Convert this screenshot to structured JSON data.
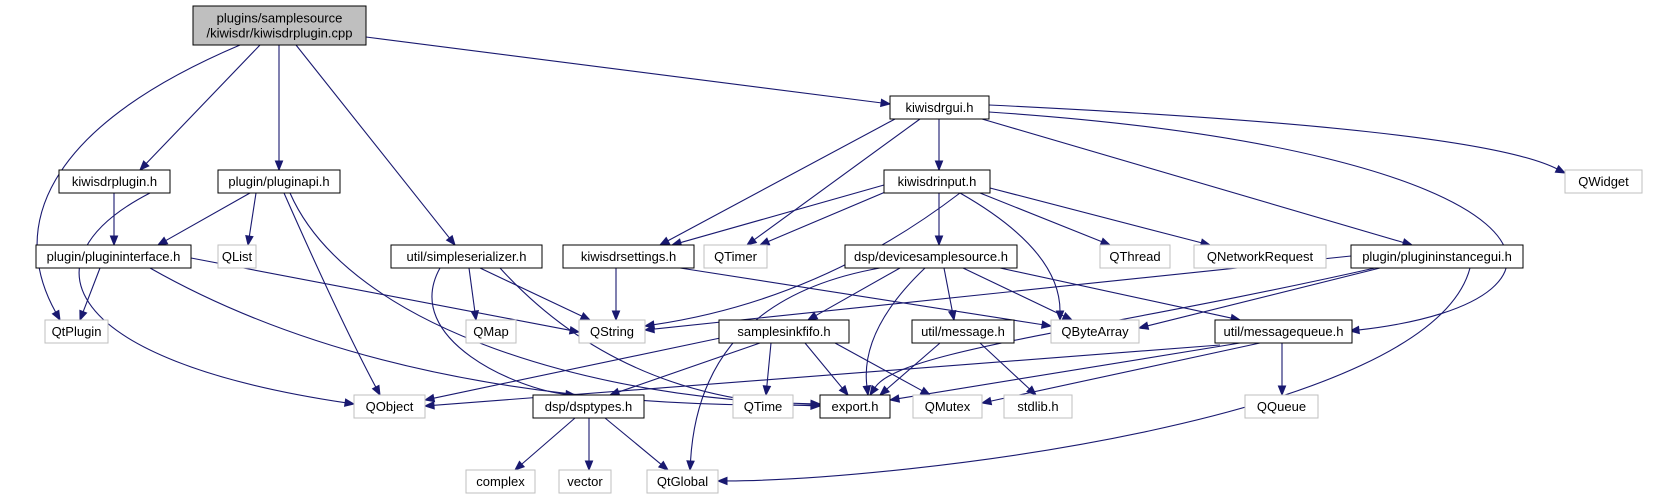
{
  "diagram": {
    "type": "include-dependency-graph",
    "colors": {
      "edge": "#191970",
      "root_fill": "#bfbfbf",
      "root_border": "#000000",
      "local_border": "#000000",
      "external_border": "#bfbfbf",
      "external_text": "#000000"
    },
    "nodes": [
      {
        "id": "root",
        "lines": [
          "plugins/samplesource",
          "/kiwisdr/kiwisdrplugin.cpp"
        ],
        "kind": "root"
      },
      {
        "id": "kiwisdrgui",
        "lines": [
          "kiwisdrgui.h"
        ],
        "kind": "local"
      },
      {
        "id": "kiwisdrplugin",
        "lines": [
          "kiwisdrplugin.h"
        ],
        "kind": "local"
      },
      {
        "id": "pluginapi",
        "lines": [
          "plugin/pluginapi.h"
        ],
        "kind": "local"
      },
      {
        "id": "simpleserializer",
        "lines": [
          "util/simpleserializer.h"
        ],
        "kind": "local"
      },
      {
        "id": "plugininterface",
        "lines": [
          "plugin/plugininterface.h"
        ],
        "kind": "local"
      },
      {
        "id": "qtplugin",
        "lines": [
          "QtPlugin"
        ],
        "kind": "external"
      },
      {
        "id": "qlist",
        "lines": [
          "QList"
        ],
        "kind": "external"
      },
      {
        "id": "qobject",
        "lines": [
          "QObject"
        ],
        "kind": "external"
      },
      {
        "id": "qmap",
        "lines": [
          "QMap"
        ],
        "kind": "external"
      },
      {
        "id": "qstring",
        "lines": [
          "QString"
        ],
        "kind": "external"
      },
      {
        "id": "export",
        "lines": [
          "export.h"
        ],
        "kind": "local"
      },
      {
        "id": "dsptypes",
        "lines": [
          "dsp/dsptypes.h"
        ],
        "kind": "local"
      },
      {
        "id": "complex",
        "lines": [
          "complex"
        ],
        "kind": "external"
      },
      {
        "id": "vector",
        "lines": [
          "vector"
        ],
        "kind": "external"
      },
      {
        "id": "qtglobal",
        "lines": [
          "QtGlobal"
        ],
        "kind": "external"
      },
      {
        "id": "kiwisdrinput",
        "lines": [
          "kiwisdrinput.h"
        ],
        "kind": "local"
      },
      {
        "id": "kiwisdrsettings",
        "lines": [
          "kiwisdrsettings.h"
        ],
        "kind": "local"
      },
      {
        "id": "qtimer",
        "lines": [
          "QTimer"
        ],
        "kind": "external"
      },
      {
        "id": "devicesamplesource",
        "lines": [
          "dsp/devicesamplesource.h"
        ],
        "kind": "local"
      },
      {
        "id": "qthread",
        "lines": [
          "QThread"
        ],
        "kind": "external"
      },
      {
        "id": "qnetworkrequest",
        "lines": [
          "QNetworkRequest"
        ],
        "kind": "external"
      },
      {
        "id": "plugininstancegui",
        "lines": [
          "plugin/plugininstancegui.h"
        ],
        "kind": "local"
      },
      {
        "id": "qwidget",
        "lines": [
          "QWidget"
        ],
        "kind": "external"
      },
      {
        "id": "qbytearray",
        "lines": [
          "QByteArray"
        ],
        "kind": "external"
      },
      {
        "id": "samplesinkfifo",
        "lines": [
          "samplesinkfifo.h"
        ],
        "kind": "local"
      },
      {
        "id": "message",
        "lines": [
          "util/message.h"
        ],
        "kind": "local"
      },
      {
        "id": "messagequeue",
        "lines": [
          "util/messagequeue.h"
        ],
        "kind": "local"
      },
      {
        "id": "qtime",
        "lines": [
          "QTime"
        ],
        "kind": "external"
      },
      {
        "id": "qmutex",
        "lines": [
          "QMutex"
        ],
        "kind": "external"
      },
      {
        "id": "stdlib",
        "lines": [
          "stdlib.h"
        ],
        "kind": "external"
      },
      {
        "id": "qqueue",
        "lines": [
          "QQueue"
        ],
        "kind": "external"
      }
    ],
    "edges": [
      {
        "from": "root",
        "to": "kiwisdrgui"
      },
      {
        "from": "root",
        "to": "kiwisdrplugin"
      },
      {
        "from": "root",
        "to": "pluginapi"
      },
      {
        "from": "root",
        "to": "simpleserializer"
      },
      {
        "from": "root",
        "to": "qtplugin"
      },
      {
        "from": "kiwisdrplugin",
        "to": "plugininterface"
      },
      {
        "from": "kiwisdrplugin",
        "to": "qobject"
      },
      {
        "from": "pluginapi",
        "to": "plugininterface"
      },
      {
        "from": "pluginapi",
        "to": "qlist"
      },
      {
        "from": "pluginapi",
        "to": "qobject"
      },
      {
        "from": "pluginapi",
        "to": "export"
      },
      {
        "from": "plugininterface",
        "to": "qtplugin"
      },
      {
        "from": "plugininterface",
        "to": "qstring"
      },
      {
        "from": "plugininterface",
        "to": "export"
      },
      {
        "from": "simpleserializer",
        "to": "qmap"
      },
      {
        "from": "simpleserializer",
        "to": "qstring"
      },
      {
        "from": "simpleserializer",
        "to": "dsptypes"
      },
      {
        "from": "simpleserializer",
        "to": "export"
      },
      {
        "from": "dsptypes",
        "to": "complex"
      },
      {
        "from": "dsptypes",
        "to": "vector"
      },
      {
        "from": "dsptypes",
        "to": "qtglobal"
      },
      {
        "from": "kiwisdrgui",
        "to": "kiwisdrinput"
      },
      {
        "from": "kiwisdrgui",
        "to": "kiwisdrsettings"
      },
      {
        "from": "kiwisdrgui",
        "to": "qtimer"
      },
      {
        "from": "kiwisdrgui",
        "to": "plugininstancegui"
      },
      {
        "from": "kiwisdrgui",
        "to": "qwidget"
      },
      {
        "from": "kiwisdrgui",
        "to": "messagequeue"
      },
      {
        "from": "kiwisdrinput",
        "to": "kiwisdrsettings"
      },
      {
        "from": "kiwisdrinput",
        "to": "qtimer"
      },
      {
        "from": "kiwisdrinput",
        "to": "qstring"
      },
      {
        "from": "kiwisdrinput",
        "to": "devicesamplesource"
      },
      {
        "from": "kiwisdrinput",
        "to": "qbytearray"
      },
      {
        "from": "kiwisdrinput",
        "to": "qthread"
      },
      {
        "from": "kiwisdrinput",
        "to": "qnetworkrequest"
      },
      {
        "from": "kiwisdrsettings",
        "to": "qstring"
      },
      {
        "from": "kiwisdrsettings",
        "to": "qbytearray"
      },
      {
        "from": "devicesamplesource",
        "to": "samplesinkfifo"
      },
      {
        "from": "devicesamplesource",
        "to": "message"
      },
      {
        "from": "devicesamplesource",
        "to": "messagequeue"
      },
      {
        "from": "devicesamplesource",
        "to": "qbytearray"
      },
      {
        "from": "devicesamplesource",
        "to": "export"
      },
      {
        "from": "devicesamplesource",
        "to": "qtglobal"
      },
      {
        "from": "plugininstancegui",
        "to": "qstring"
      },
      {
        "from": "plugininstancegui",
        "to": "qbytearray"
      },
      {
        "from": "plugininstancegui",
        "to": "export"
      },
      {
        "from": "plugininstancegui",
        "to": "qtglobal"
      },
      {
        "from": "samplesinkfifo",
        "to": "qobject"
      },
      {
        "from": "samplesinkfifo",
        "to": "dsptypes"
      },
      {
        "from": "samplesinkfifo",
        "to": "export"
      },
      {
        "from": "samplesinkfifo",
        "to": "qtime"
      },
      {
        "from": "samplesinkfifo",
        "to": "qmutex"
      },
      {
        "from": "message",
        "to": "stdlib"
      },
      {
        "from": "message",
        "to": "export"
      },
      {
        "from": "messagequeue",
        "to": "qobject"
      },
      {
        "from": "messagequeue",
        "to": "export"
      },
      {
        "from": "messagequeue",
        "to": "qmutex"
      },
      {
        "from": "messagequeue",
        "to": "qqueue"
      }
    ]
  }
}
